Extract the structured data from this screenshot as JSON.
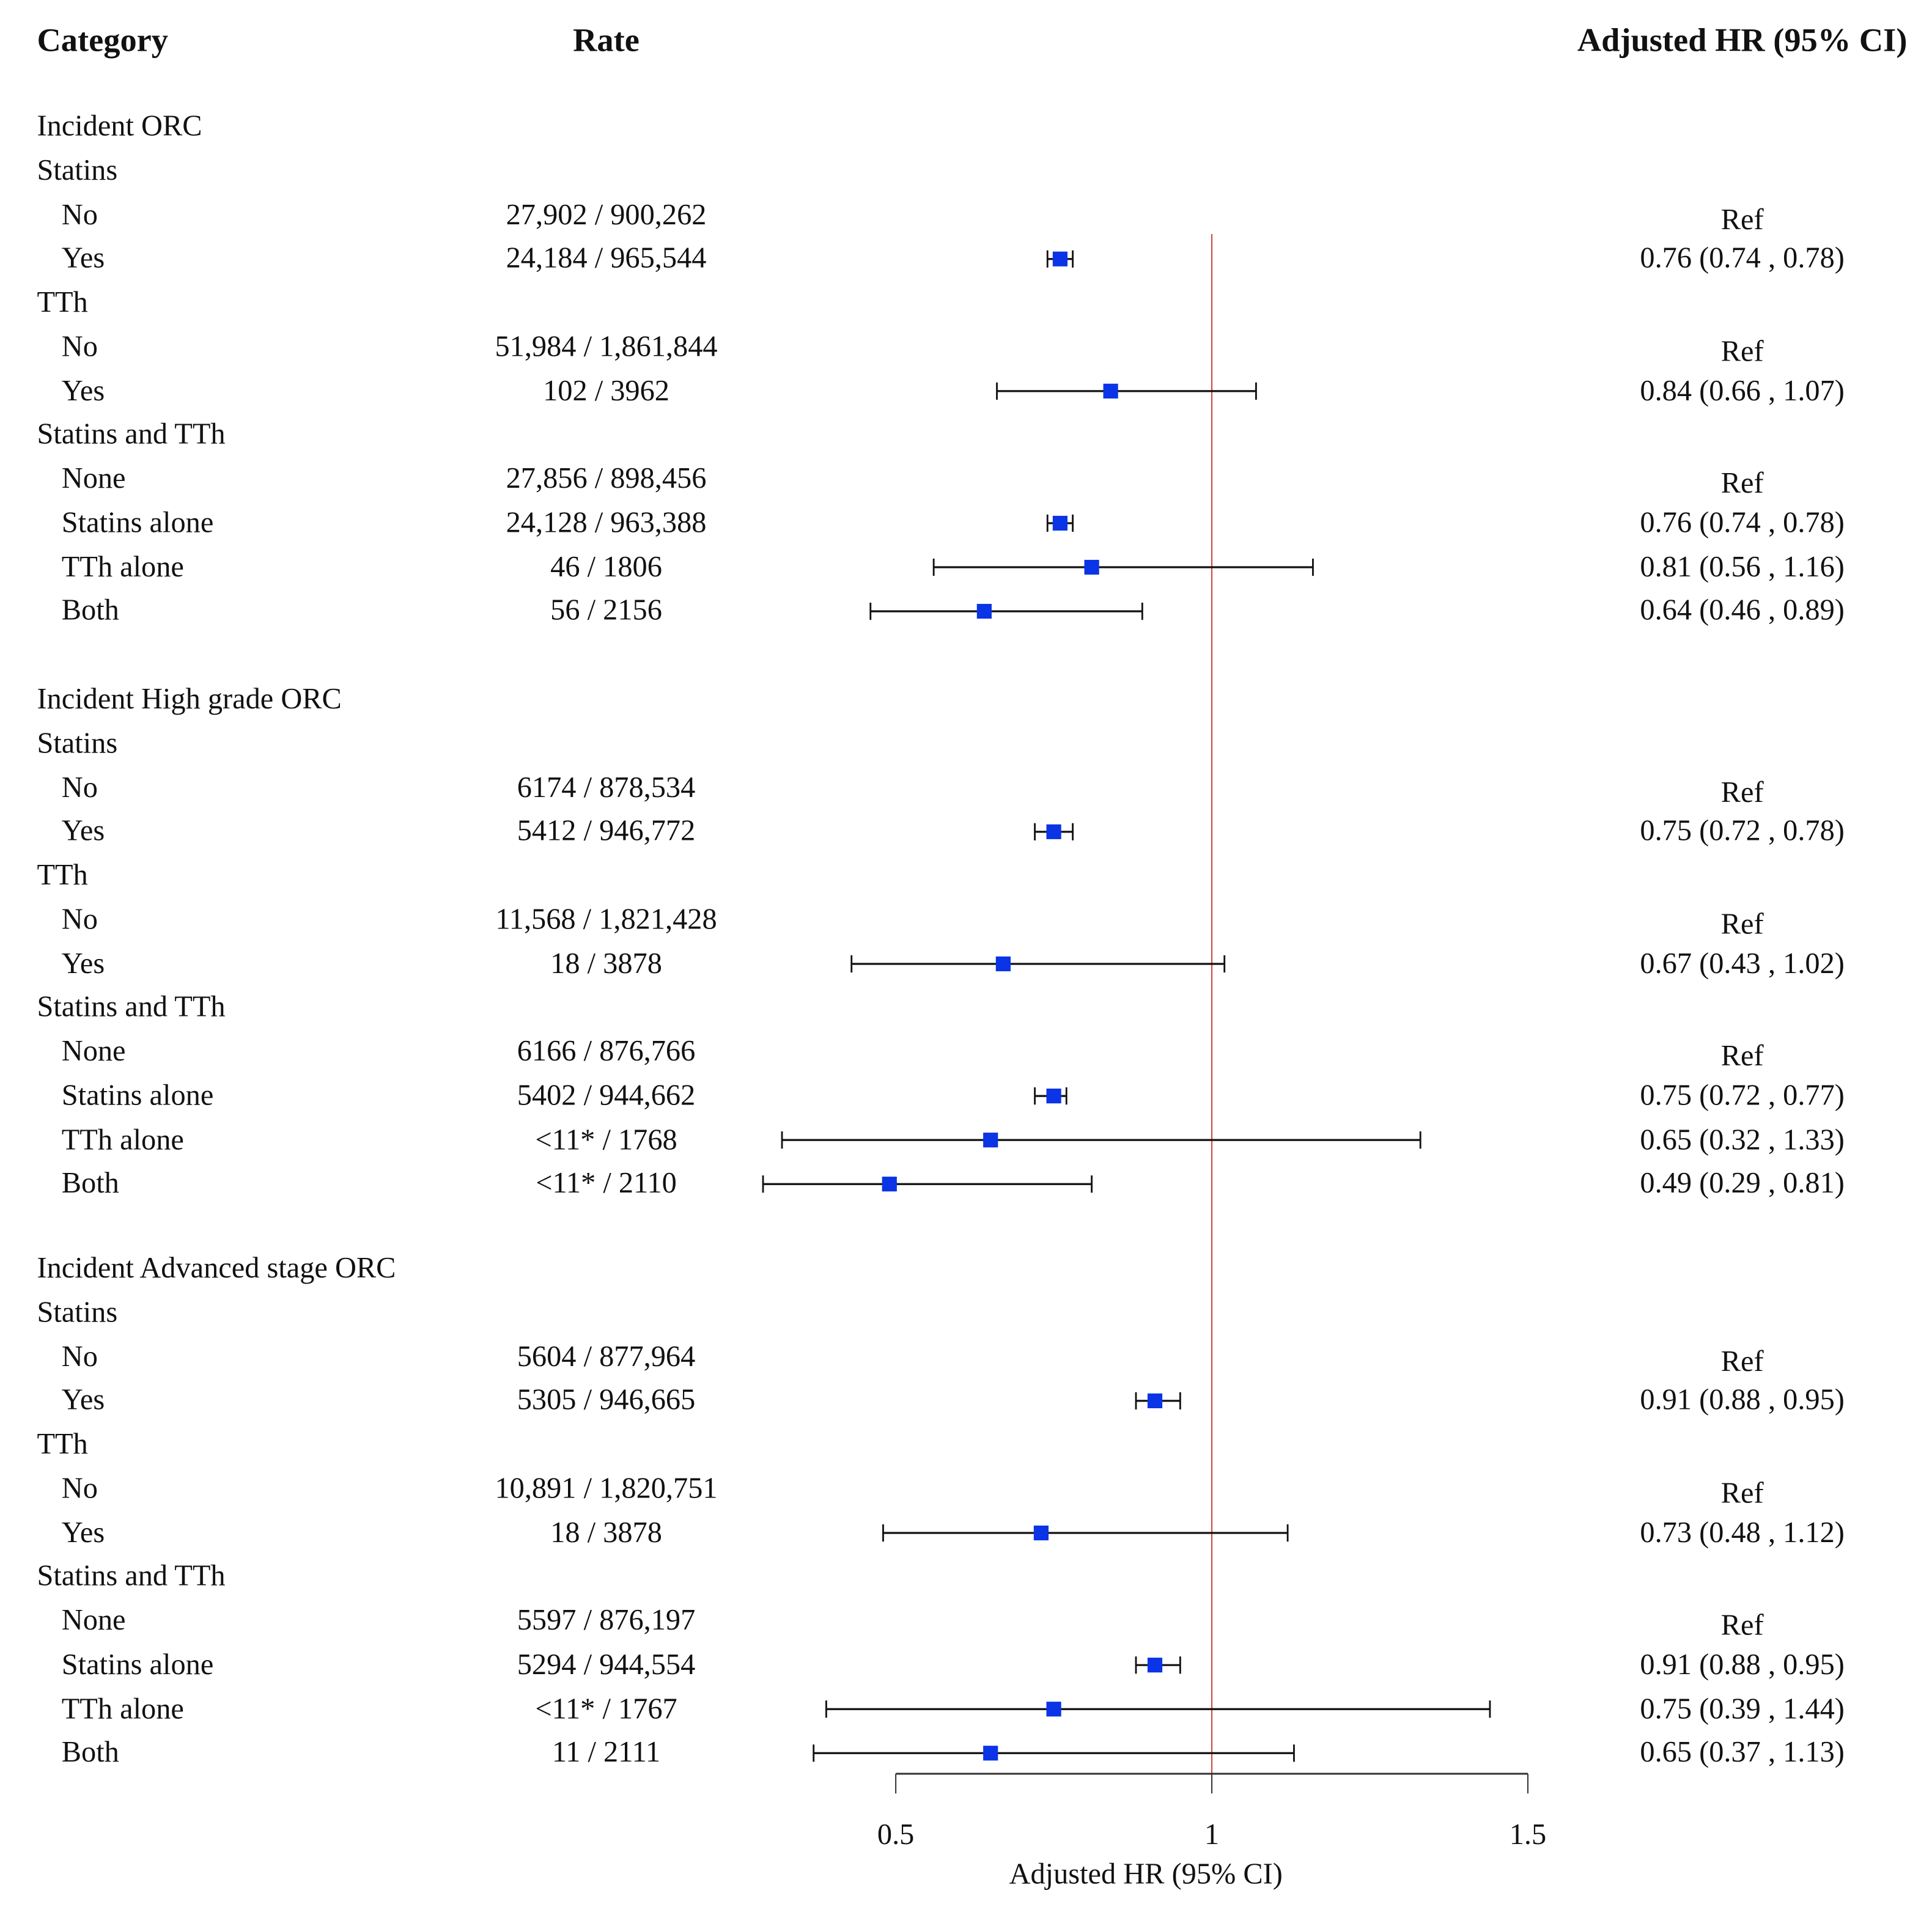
{
  "headers": {
    "category": "Category",
    "rate": "Rate",
    "hr": "Adjusted HR (95% CI)"
  },
  "colors": {
    "marker": "#0a34e6",
    "ref_line": "#d04040",
    "ci": "#111111"
  },
  "chart_data": {
    "type": "forest",
    "xlabel": "Adjusted HR (95% CI)",
    "xlim": [
      0.5,
      1.5
    ],
    "xticks": [
      0.5,
      1,
      1.5
    ],
    "xtick_labels": [
      "0.5",
      "1",
      "1.5"
    ],
    "reference_line": 1,
    "sections": [
      {
        "title": "Incident ORC",
        "rows": [
          {
            "label": "Statins",
            "group": true
          },
          {
            "label": "No",
            "rate": "27,902 / 900,262",
            "text": "Ref"
          },
          {
            "label": "Yes",
            "rate": "24,184 / 965,544",
            "hr": 0.76,
            "lo": 0.74,
            "hi": 0.78,
            "text": "0.76 (0.74 , 0.78)"
          },
          {
            "label": "TTh",
            "group": true
          },
          {
            "label": "No",
            "rate": "51,984 / 1,861,844",
            "text": "Ref"
          },
          {
            "label": "Yes",
            "rate": "102 / 3962",
            "hr": 0.84,
            "lo": 0.66,
            "hi": 1.07,
            "text": "0.84 (0.66 , 1.07)"
          },
          {
            "label": "Statins and TTh",
            "group": true
          },
          {
            "label": "None",
            "rate": "27,856 / 898,456",
            "text": "Ref"
          },
          {
            "label": "Statins alone",
            "rate": "24,128 / 963,388",
            "hr": 0.76,
            "lo": 0.74,
            "hi": 0.78,
            "text": "0.76 (0.74 , 0.78)"
          },
          {
            "label": "TTh alone",
            "rate": "46 / 1806",
            "hr": 0.81,
            "lo": 0.56,
            "hi": 1.16,
            "text": "0.81 (0.56 , 1.16)"
          },
          {
            "label": "Both",
            "rate": "56 / 2156",
            "hr": 0.64,
            "lo": 0.46,
            "hi": 0.89,
            "text": "0.64 (0.46 , 0.89)"
          }
        ]
      },
      {
        "title": "Incident High grade ORC",
        "rows": [
          {
            "label": "Statins",
            "group": true
          },
          {
            "label": "No",
            "rate": "6174 / 878,534",
            "text": "Ref"
          },
          {
            "label": "Yes",
            "rate": "5412 / 946,772",
            "hr": 0.75,
            "lo": 0.72,
            "hi": 0.78,
            "text": "0.75 (0.72 , 0.78)"
          },
          {
            "label": "TTh",
            "group": true
          },
          {
            "label": "No",
            "rate": "11,568 / 1,821,428",
            "text": "Ref"
          },
          {
            "label": "Yes",
            "rate": "18 / 3878",
            "hr": 0.67,
            "lo": 0.43,
            "hi": 1.02,
            "text": "0.67 (0.43 , 1.02)"
          },
          {
            "label": "Statins and TTh",
            "group": true
          },
          {
            "label": "None",
            "rate": "6166 / 876,766",
            "text": "Ref"
          },
          {
            "label": "Statins alone",
            "rate": "5402 / 944,662",
            "hr": 0.75,
            "lo": 0.72,
            "hi": 0.77,
            "text": "0.75 (0.72 , 0.77)"
          },
          {
            "label": "TTh alone",
            "rate": "<11* / 1768",
            "hr": 0.65,
            "lo": 0.32,
            "hi": 1.33,
            "text": "0.65 (0.32 , 1.33)"
          },
          {
            "label": "Both",
            "rate": "<11* / 2110",
            "hr": 0.49,
            "lo": 0.29,
            "hi": 0.81,
            "text": "0.49 (0.29 , 0.81)"
          }
        ]
      },
      {
        "title": "Incident Advanced stage ORC",
        "rows": [
          {
            "label": "Statins",
            "group": true
          },
          {
            "label": "No",
            "rate": "5604 / 877,964",
            "text": "Ref"
          },
          {
            "label": "Yes",
            "rate": "5305 / 946,665",
            "hr": 0.91,
            "lo": 0.88,
            "hi": 0.95,
            "text": "0.91 (0.88 , 0.95)"
          },
          {
            "label": "TTh",
            "group": true
          },
          {
            "label": "No",
            "rate": "10,891 / 1,820,751",
            "text": "Ref"
          },
          {
            "label": "Yes",
            "rate": "18 / 3878",
            "hr": 0.73,
            "lo": 0.48,
            "hi": 1.12,
            "text": "0.73 (0.48 , 1.12)"
          },
          {
            "label": "Statins and TTh",
            "group": true
          },
          {
            "label": "None",
            "rate": "5597 / 876,197",
            "text": "Ref"
          },
          {
            "label": "Statins alone",
            "rate": "5294 / 944,554",
            "hr": 0.91,
            "lo": 0.88,
            "hi": 0.95,
            "text": "0.91 (0.88 , 0.95)"
          },
          {
            "label": "TTh alone",
            "rate": "<11* / 1767",
            "hr": 0.75,
            "lo": 0.39,
            "hi": 1.44,
            "text": "0.75 (0.39 , 1.44)"
          },
          {
            "label": "Both",
            "rate": "11 / 2111",
            "hr": 0.65,
            "lo": 0.37,
            "hi": 1.13,
            "text": "0.65 (0.37 , 1.13)"
          }
        ]
      }
    ]
  }
}
